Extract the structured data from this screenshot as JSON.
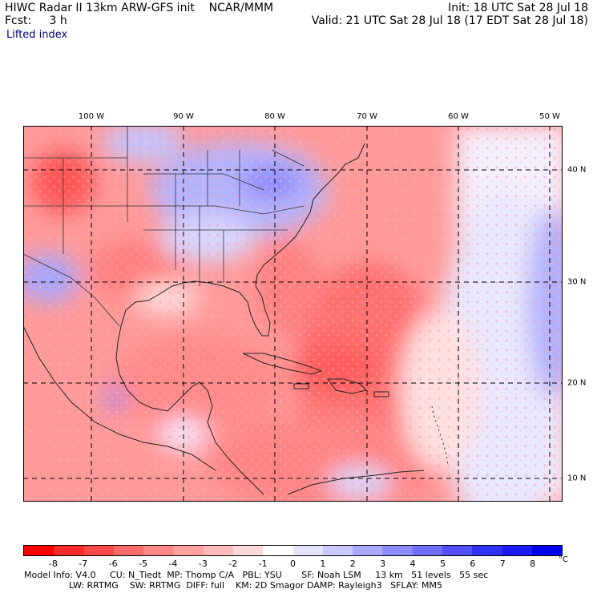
{
  "header": {
    "left_line1": "HIWC Radar II 13km ARW-GFS init    NCAR/MMM",
    "left_line2": "Fcst:     3 h",
    "right_line1": "Init: 18 UTC Sat 28 Jul 18",
    "right_line2": "Valid: 21 UTC Sat 28 Jul 18 (17 EDT Sat 28 Jul 18)",
    "field_name": "Lifted index"
  },
  "map": {
    "longitude_labels": [
      "100 W",
      "90 W",
      "80 W",
      "70 W",
      "60 W",
      "50 W"
    ],
    "latitude_labels": [
      "40 N",
      "30 N",
      "20 N",
      "10 N"
    ],
    "colors": {
      "border": "#000000",
      "gridline": "#000000",
      "coastline": "#222222"
    }
  },
  "colorbar": {
    "tick_labels": [
      "-8",
      "-7",
      "-6",
      "-5",
      "-4",
      "-3",
      "-2",
      "-1",
      "0",
      "1",
      "2",
      "3",
      "4",
      "5",
      "6",
      "7",
      "8"
    ],
    "unit": "°C",
    "colors": [
      "#ff0000",
      "#ff2a2a",
      "#ff4848",
      "#ff6a6a",
      "#ff8686",
      "#ffa0a0",
      "#ffbcbc",
      "#ffd8d8",
      "#ffffff",
      "#e4e4ff",
      "#c8c8ff",
      "#aaaaff",
      "#8c8cff",
      "#6e6eff",
      "#5050ff",
      "#3232ff",
      "#1a1aff",
      "#0000ee"
    ]
  },
  "footer": {
    "line1": "Model Info: V4.0     CU: N_Tiedt  MP: Thomp C/A   PBL: YSU       SF: Noah LSM     13 km   51 levels   55 sec",
    "line2": "                LW: RRTMG    SW: RRTMG  DIFF: full    KM: 2D Smagor DAMP: Rayleigh3   SFLAY: MM5"
  }
}
